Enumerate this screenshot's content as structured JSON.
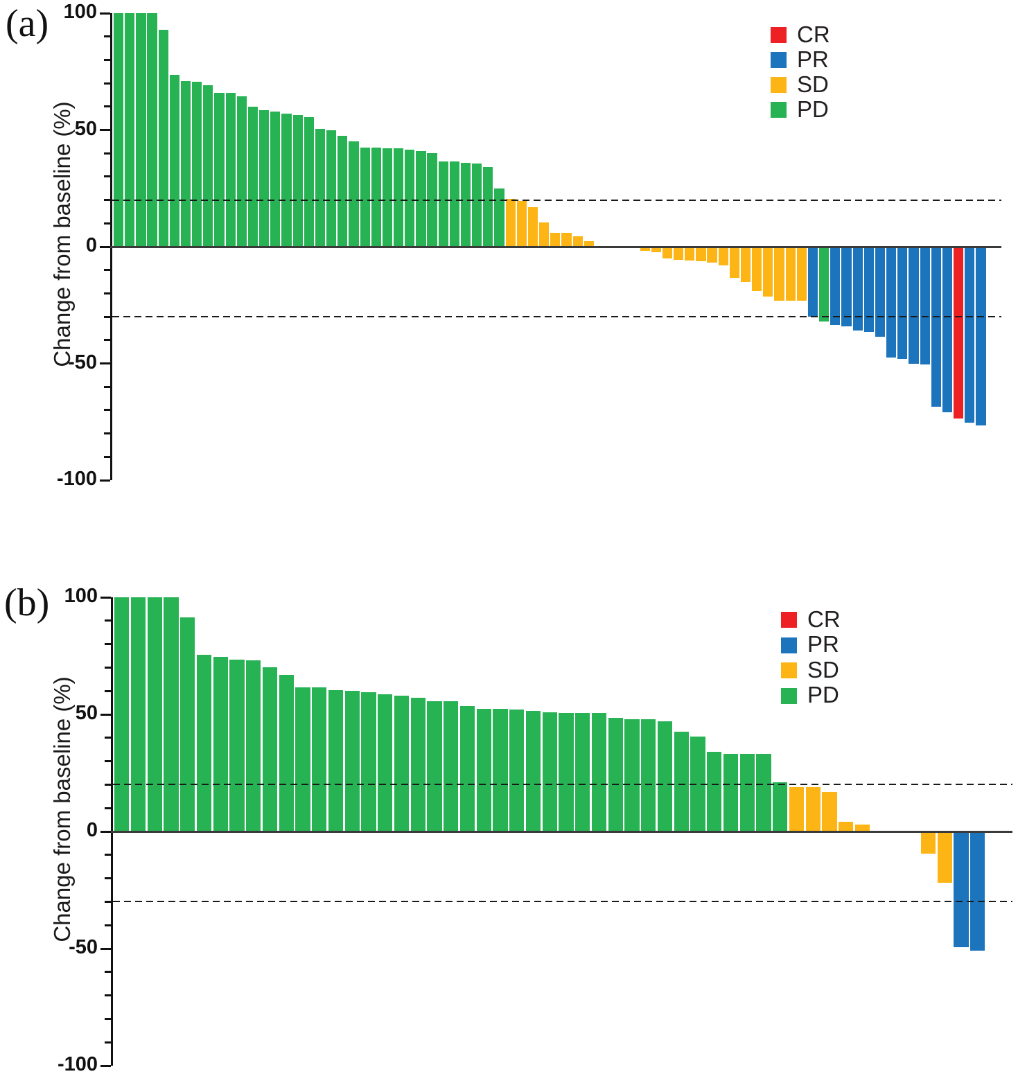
{
  "figure": {
    "background": "#ffffff",
    "response_colors": {
      "CR": "#ED2024",
      "PR": "#1B74BC",
      "SD": "#FDB515",
      "PD": "#27B254"
    }
  },
  "chart_data": [
    {
      "type": "bar",
      "subtype": "waterfall",
      "panel": "(a)",
      "ylabel": "Change from baseline (%)",
      "ylim": [
        -100,
        100
      ],
      "yticks": [
        100,
        50,
        0,
        -50,
        -100
      ],
      "minor_tick_step": 10,
      "reference_lines": [
        20,
        -30
      ],
      "grid": false,
      "legend_position": "top-right",
      "legend": [
        {
          "label": "CR",
          "color": "#ED2024"
        },
        {
          "label": "PR",
          "color": "#1B74BC"
        },
        {
          "label": "SD",
          "color": "#FDB515"
        },
        {
          "label": "PD",
          "color": "#27B254"
        }
      ],
      "values": [
        100,
        100,
        100,
        100,
        93,
        73.5,
        71,
        70.5,
        69,
        66,
        66,
        64.5,
        60,
        58.5,
        58,
        57,
        56.5,
        55.5,
        50.5,
        50,
        47.5,
        45,
        42.5,
        42.5,
        42,
        42,
        41.5,
        41,
        40,
        36.5,
        36.5,
        36,
        35.5,
        34,
        25,
        20.5,
        19.5,
        17,
        10.5,
        6,
        6,
        4.5,
        2.5,
        0,
        0,
        0,
        0,
        -1.7,
        -2.4,
        -5,
        -5.5,
        -6,
        -6.3,
        -6.8,
        -8,
        -13.5,
        -15,
        -19,
        -21.5,
        -23,
        -23,
        -23,
        -30,
        -32,
        -33.5,
        -34,
        -36,
        -36.5,
        -38.5,
        -47.5,
        -48,
        -50,
        -50.5,
        -68.5,
        -71,
        -73.5,
        -75.5,
        -76.5
      ],
      "responses": [
        "PD",
        "PD",
        "PD",
        "PD",
        "PD",
        "PD",
        "PD",
        "PD",
        "PD",
        "PD",
        "PD",
        "PD",
        "PD",
        "PD",
        "PD",
        "PD",
        "PD",
        "PD",
        "PD",
        "PD",
        "PD",
        "PD",
        "PD",
        "PD",
        "PD",
        "PD",
        "PD",
        "PD",
        "PD",
        "PD",
        "PD",
        "PD",
        "PD",
        "PD",
        "PD",
        "SD",
        "SD",
        "SD",
        "SD",
        "SD",
        "SD",
        "SD",
        "SD",
        "SD",
        "SD",
        "SD",
        "SD",
        "SD",
        "SD",
        "SD",
        "SD",
        "SD",
        "SD",
        "SD",
        "SD",
        "SD",
        "SD",
        "SD",
        "SD",
        "SD",
        "SD",
        "SD",
        "PR",
        "PD",
        "PR",
        "PR",
        "PR",
        "PR",
        "PR",
        "PR",
        "PR",
        "PR",
        "PR",
        "PR",
        "PR",
        "CR",
        "PR",
        "PR"
      ]
    },
    {
      "type": "bar",
      "subtype": "waterfall",
      "panel": "(b)",
      "ylabel": "Change from baseline (%)",
      "ylim": [
        -100,
        100
      ],
      "yticks": [
        100,
        50,
        0,
        -50,
        -100
      ],
      "minor_tick_step": 10,
      "reference_lines": [
        20,
        -30
      ],
      "grid": false,
      "legend_position": "top-right",
      "legend": [
        {
          "label": "CR",
          "color": "#ED2024"
        },
        {
          "label": "PR",
          "color": "#1B74BC"
        },
        {
          "label": "SD",
          "color": "#FDB515"
        },
        {
          "label": "PD",
          "color": "#27B254"
        }
      ],
      "values": [
        100,
        100,
        100,
        100,
        91.5,
        75.5,
        74.5,
        73.5,
        73,
        70,
        67,
        61.5,
        61.5,
        60.5,
        60,
        59.5,
        58.5,
        58,
        57,
        55.5,
        55.5,
        53.5,
        52.5,
        52.5,
        52,
        51.5,
        51,
        50.5,
        50.5,
        50.5,
        48.5,
        48,
        48,
        47,
        42.5,
        40.5,
        34,
        33,
        33,
        33,
        21,
        19,
        18.8,
        17,
        4.2,
        3,
        0,
        0,
        0,
        -9.5,
        -22,
        -49.5,
        -51
      ],
      "responses": [
        "PD",
        "PD",
        "PD",
        "PD",
        "PD",
        "PD",
        "PD",
        "PD",
        "PD",
        "PD",
        "PD",
        "PD",
        "PD",
        "PD",
        "PD",
        "PD",
        "PD",
        "PD",
        "PD",
        "PD",
        "PD",
        "PD",
        "PD",
        "PD",
        "PD",
        "PD",
        "PD",
        "PD",
        "PD",
        "PD",
        "PD",
        "PD",
        "PD",
        "PD",
        "PD",
        "PD",
        "PD",
        "PD",
        "PD",
        "PD",
        "PD",
        "SD",
        "SD",
        "SD",
        "SD",
        "SD",
        "SD",
        "SD",
        "SD",
        "SD",
        "SD",
        "PR",
        "PR"
      ]
    }
  ]
}
